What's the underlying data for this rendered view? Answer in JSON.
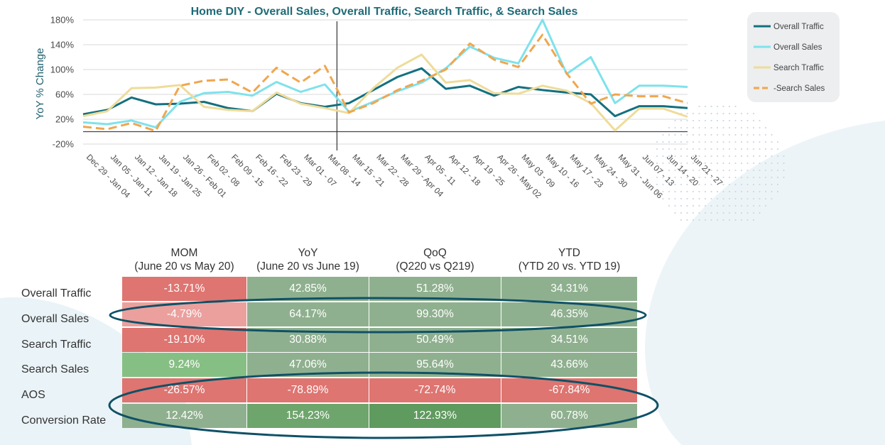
{
  "chart_data": {
    "type": "line",
    "title": "Home DIY - Overall Sales, Overall Traffic, Search Traffic, & Search Sales",
    "ylabel": "YoY % Change",
    "xlabel": "",
    "ylim": [
      -20,
      180
    ],
    "yticks": [
      "-20%",
      "20%",
      "60%",
      "100%",
      "140%",
      "180%"
    ],
    "ytick_values": [
      -20,
      20,
      60,
      100,
      140,
      180
    ],
    "categories": [
      "Dec 29 - Jan 04",
      "Jan 05 - Jan 11",
      "Jan 12 - Jan 18",
      "Jan 19 - Jan 25",
      "Jan 26 - Feb 01",
      "Feb 02 - 08",
      "Feb 09 - 15",
      "Feb 16 - 22",
      "Feb 23 - 29",
      "Mar 01 - 07",
      "Mar 08 - 14",
      "Mar 15 - 21",
      "Mar 22 - 28",
      "Mar 29 - Apr 04",
      "Apr 05 - 11",
      "Apr 12 - 18",
      "Apr 19 - 25",
      "Apr 26 - May 02",
      "May 03 - 09",
      "May 10 - 16",
      "May 17 - 23",
      "May 24 - 30",
      "May 31 - Jun 06",
      "Jun 07 - 13",
      "Jun 14 - 20",
      "Jun 21 - 27"
    ],
    "vline_after": "Mar 08 - 14",
    "legend_position": "right",
    "series": [
      {
        "name": "Overall Traffic",
        "color": "#13707f",
        "dash": "solid",
        "values": [
          28,
          35,
          55,
          44,
          45,
          48,
          38,
          33,
          61,
          46,
          40,
          46,
          67,
          88,
          102,
          69,
          74,
          58,
          72,
          67,
          63,
          60,
          25,
          41,
          41,
          38
        ]
      },
      {
        "name": "Overall Sales",
        "color": "#7ee2ec",
        "dash": "solid",
        "values": [
          15,
          12,
          18,
          7,
          48,
          62,
          64,
          58,
          80,
          64,
          76,
          32,
          48,
          65,
          79,
          102,
          137,
          119,
          110,
          180,
          93,
          120,
          46,
          74,
          74,
          72
        ]
      },
      {
        "name": "Search Traffic",
        "color": "#eedc9a",
        "dash": "solid",
        "values": [
          25,
          33,
          70,
          71,
          75,
          40,
          35,
          33,
          63,
          45,
          38,
          30,
          70,
          103,
          124,
          79,
          83,
          62,
          61,
          74,
          66,
          46,
          2,
          37,
          37,
          24
        ]
      },
      {
        "name": "-Search Sales",
        "color": "#f0a64e",
        "dash": "dashed",
        "values": [
          8,
          4,
          14,
          1,
          74,
          82,
          84,
          63,
          103,
          79,
          106,
          31,
          46,
          67,
          82,
          100,
          142,
          116,
          104,
          156,
          94,
          45,
          60,
          57,
          57,
          46
        ]
      }
    ]
  },
  "table": {
    "columns": [
      {
        "title": "MOM",
        "subtitle": "(June 20 vs May 20)"
      },
      {
        "title": "YoY",
        "subtitle": "(June 20 vs June 19)"
      },
      {
        "title": "QoQ",
        "subtitle": "(Q220 vs Q219)"
      },
      {
        "title": "YTD",
        "subtitle": "(YTD 20 vs. YTD 19)"
      }
    ],
    "rows": [
      {
        "label": "Overall Traffic",
        "cells": [
          {
            "text": "-13.71%",
            "color": "#de7571"
          },
          {
            "text": "42.85%",
            "color": "#8fb08f"
          },
          {
            "text": "51.28%",
            "color": "#8fb08f"
          },
          {
            "text": "34.31%",
            "color": "#8fb08f"
          }
        ]
      },
      {
        "label": "Overall Sales",
        "cells": [
          {
            "text": "-4.79%",
            "color": "#eba09d"
          },
          {
            "text": "64.17%",
            "color": "#8fb08f"
          },
          {
            "text": "99.30%",
            "color": "#8fb08f"
          },
          {
            "text": "46.35%",
            "color": "#8fb08f"
          }
        ]
      },
      {
        "label": "Search Traffic",
        "cells": [
          {
            "text": "-19.10%",
            "color": "#de7571"
          },
          {
            "text": "30.88%",
            "color": "#8fb08f"
          },
          {
            "text": "50.49%",
            "color": "#8fb08f"
          },
          {
            "text": "34.51%",
            "color": "#8fb08f"
          }
        ]
      },
      {
        "label": "Search Sales",
        "cells": [
          {
            "text": "9.24%",
            "color": "#86bf83"
          },
          {
            "text": "47.06%",
            "color": "#8fb08f"
          },
          {
            "text": "95.64%",
            "color": "#8fb08f"
          },
          {
            "text": "43.66%",
            "color": "#8fb08f"
          }
        ]
      },
      {
        "label": "AOS",
        "cells": [
          {
            "text": "-26.57%",
            "color": "#de7571"
          },
          {
            "text": "-78.89%",
            "color": "#de7571"
          },
          {
            "text": "-72.74%",
            "color": "#de7571"
          },
          {
            "text": "-67.84%",
            "color": "#de7571"
          }
        ]
      },
      {
        "label": "Conversion Rate",
        "cells": [
          {
            "text": "12.42%",
            "color": "#8fb08f"
          },
          {
            "text": "154.23%",
            "color": "#6ea56c"
          },
          {
            "text": "122.93%",
            "color": "#5f9a5e"
          },
          {
            "text": "60.78%",
            "color": "#8fb08f"
          }
        ]
      }
    ],
    "highlight_color": "#0f5166"
  }
}
